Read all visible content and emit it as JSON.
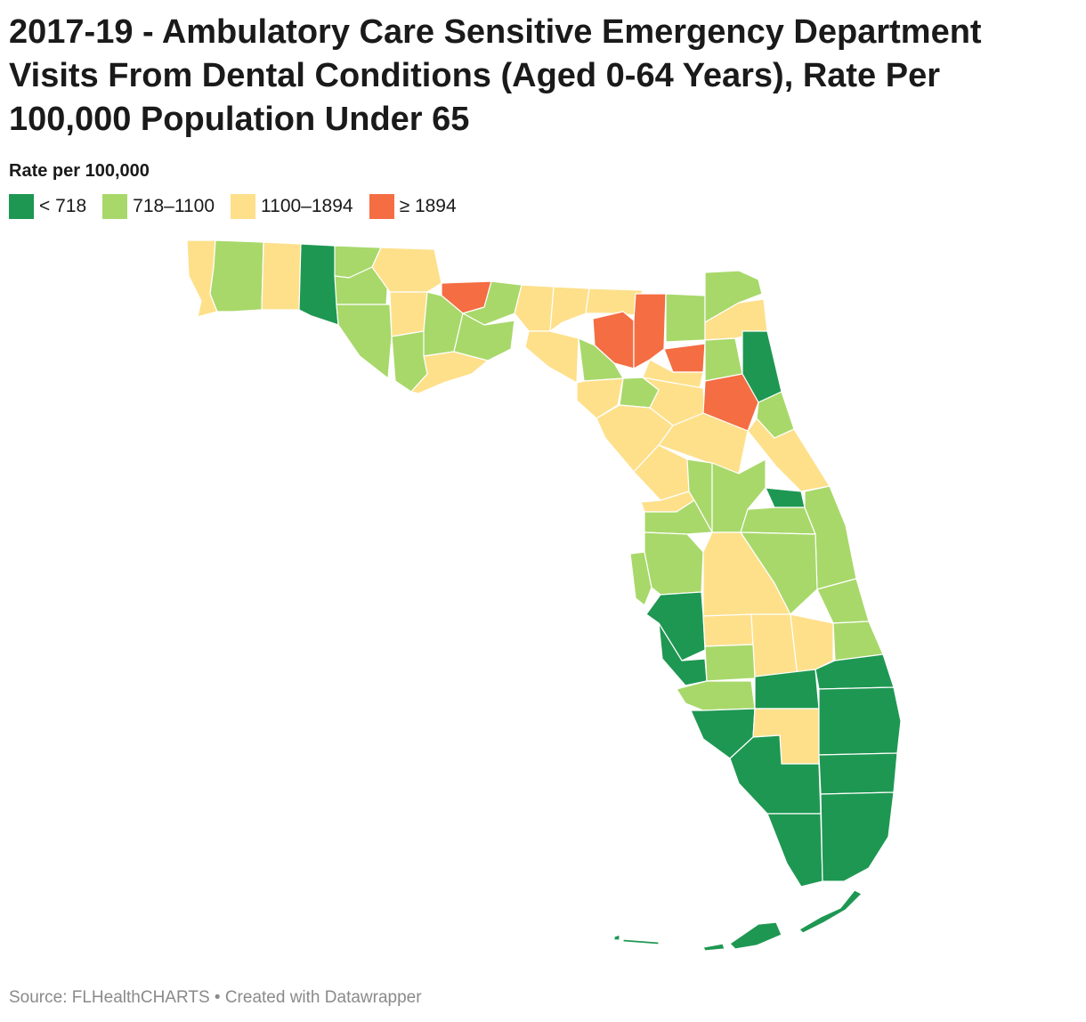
{
  "title": "2017-19 - Ambulatory Care Sensitive Emergency Department Visits From Dental Conditions (Aged 0-64 Years), Rate Per 100,000 Population Under 65",
  "legend": {
    "title": "Rate per 100,000",
    "items": [
      {
        "label": "< 718",
        "color": "#1e9752"
      },
      {
        "label": "718–1100",
        "color": "#a8d86a"
      },
      {
        "label": "1100–1894",
        "color": "#fee08b"
      },
      {
        "label": "≥ 1894",
        "color": "#f46d43"
      }
    ]
  },
  "source": "Source: FLHealthCHARTS • Created with Datawrapper"
}
